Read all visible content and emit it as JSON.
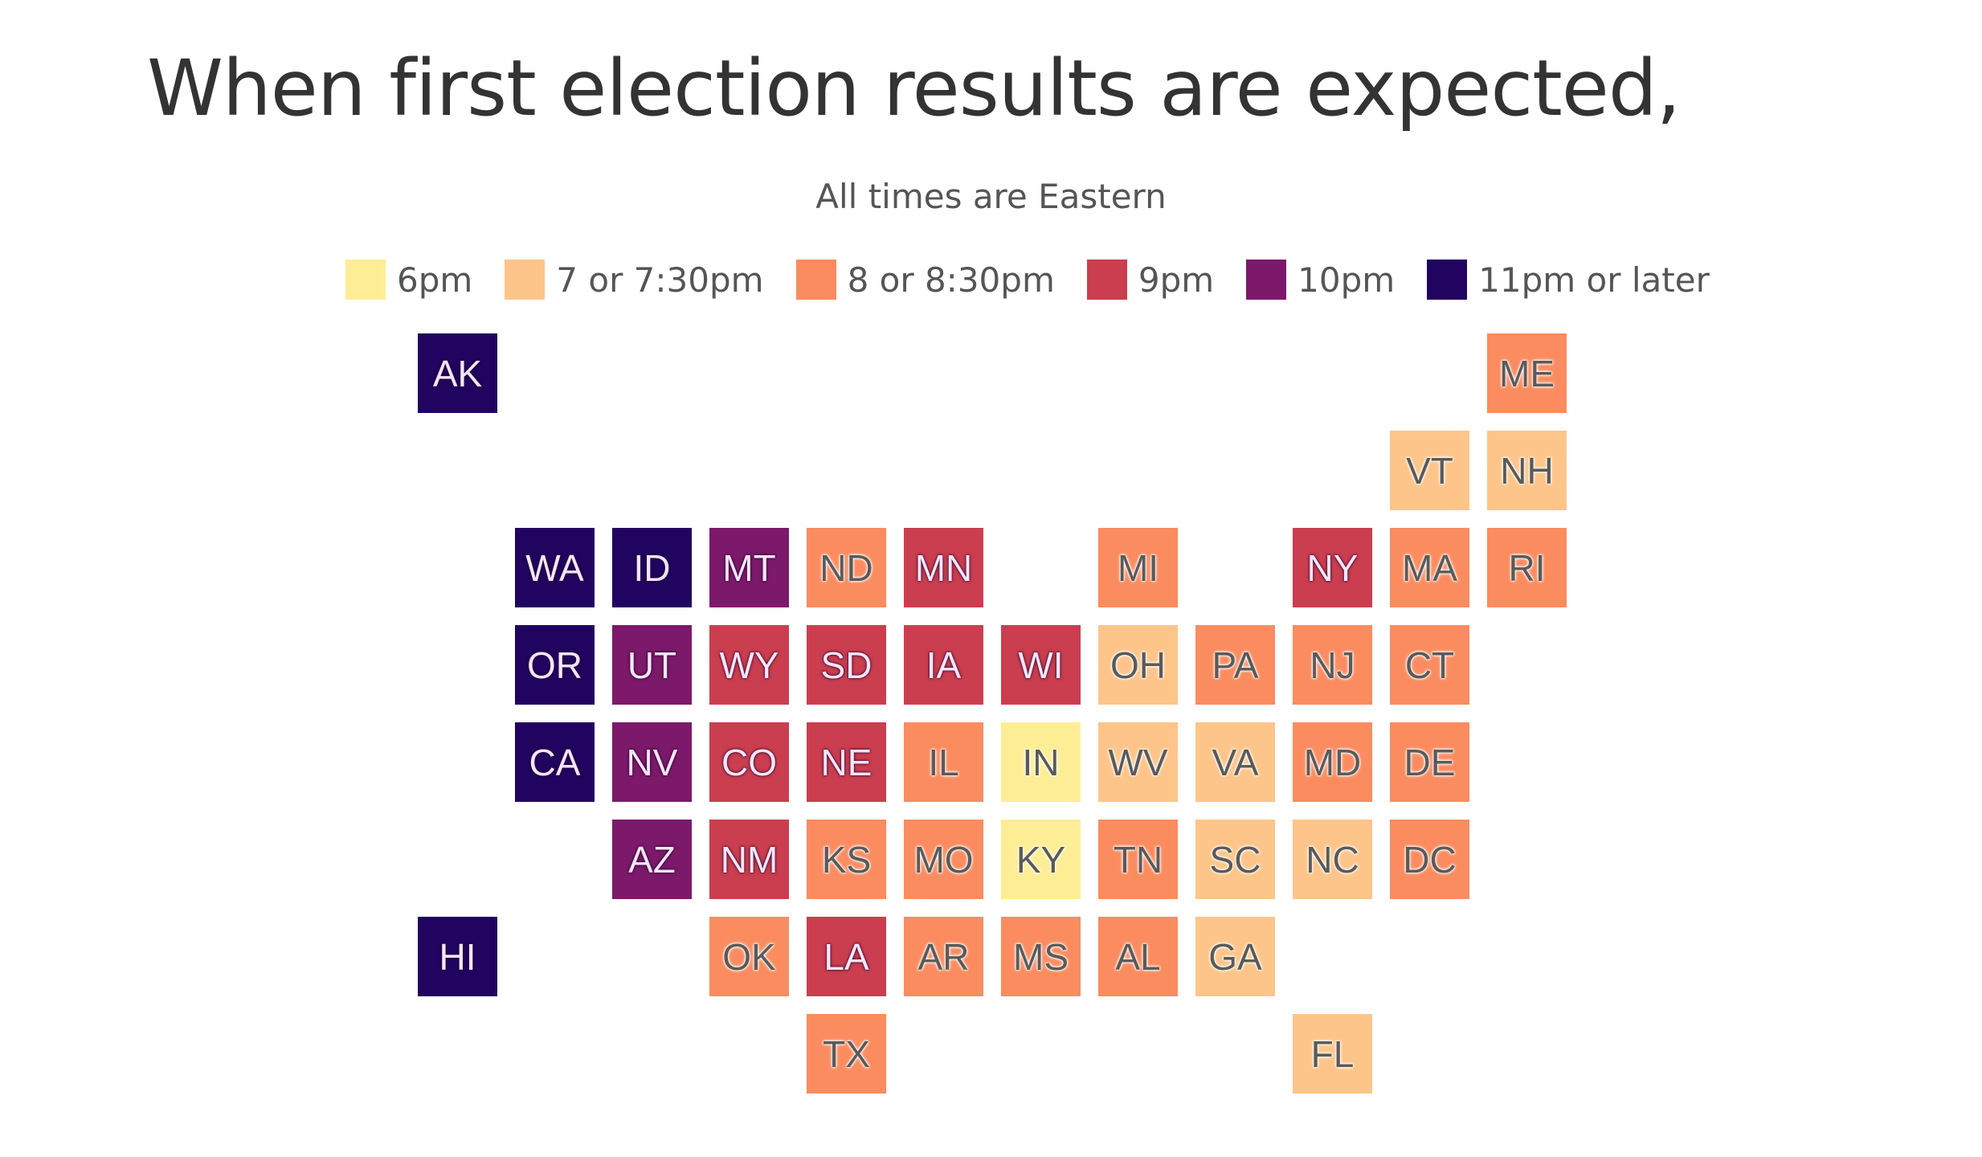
{
  "chart_data": {
    "type": "tile-map",
    "title": "When first election results are expected,",
    "subtitle": "All times are Eastern",
    "legend": [
      {
        "id": "6pm",
        "label": "6pm",
        "color": "#fdee96"
      },
      {
        "id": "7pm",
        "label": "7 or 7:30pm",
        "color": "#fdc58a"
      },
      {
        "id": "8pm",
        "label": "8 or 8:30pm",
        "color": "#fa8c60"
      },
      {
        "id": "9pm",
        "label": "9pm",
        "color": "#cb3e4f"
      },
      {
        "id": "10pm",
        "label": "10pm",
        "color": "#7d196b"
      },
      {
        "id": "11pm",
        "label": "11pm or later",
        "color": "#210460"
      }
    ],
    "states": [
      {
        "abbr": "AK",
        "col": 0,
        "row": 0,
        "time": "11pm"
      },
      {
        "abbr": "ME",
        "col": 11,
        "row": 0,
        "time": "8pm"
      },
      {
        "abbr": "VT",
        "col": 10,
        "row": 1,
        "time": "7pm"
      },
      {
        "abbr": "NH",
        "col": 11,
        "row": 1,
        "time": "7pm"
      },
      {
        "abbr": "WA",
        "col": 1,
        "row": 2,
        "time": "11pm"
      },
      {
        "abbr": "ID",
        "col": 2,
        "row": 2,
        "time": "11pm"
      },
      {
        "abbr": "MT",
        "col": 3,
        "row": 2,
        "time": "10pm"
      },
      {
        "abbr": "ND",
        "col": 4,
        "row": 2,
        "time": "8pm"
      },
      {
        "abbr": "MN",
        "col": 5,
        "row": 2,
        "time": "9pm"
      },
      {
        "abbr": "MI",
        "col": 7,
        "row": 2,
        "time": "8pm"
      },
      {
        "abbr": "NY",
        "col": 9,
        "row": 2,
        "time": "9pm"
      },
      {
        "abbr": "MA",
        "col": 10,
        "row": 2,
        "time": "8pm"
      },
      {
        "abbr": "RI",
        "col": 11,
        "row": 2,
        "time": "8pm"
      },
      {
        "abbr": "OR",
        "col": 1,
        "row": 3,
        "time": "11pm"
      },
      {
        "abbr": "UT",
        "col": 2,
        "row": 3,
        "time": "10pm"
      },
      {
        "abbr": "WY",
        "col": 3,
        "row": 3,
        "time": "9pm"
      },
      {
        "abbr": "SD",
        "col": 4,
        "row": 3,
        "time": "9pm"
      },
      {
        "abbr": "IA",
        "col": 5,
        "row": 3,
        "time": "9pm"
      },
      {
        "abbr": "WI",
        "col": 6,
        "row": 3,
        "time": "9pm"
      },
      {
        "abbr": "OH",
        "col": 7,
        "row": 3,
        "time": "7pm"
      },
      {
        "abbr": "PA",
        "col": 8,
        "row": 3,
        "time": "8pm"
      },
      {
        "abbr": "NJ",
        "col": 9,
        "row": 3,
        "time": "8pm"
      },
      {
        "abbr": "CT",
        "col": 10,
        "row": 3,
        "time": "8pm"
      },
      {
        "abbr": "CA",
        "col": 1,
        "row": 4,
        "time": "11pm"
      },
      {
        "abbr": "NV",
        "col": 2,
        "row": 4,
        "time": "10pm"
      },
      {
        "abbr": "CO",
        "col": 3,
        "row": 4,
        "time": "9pm"
      },
      {
        "abbr": "NE",
        "col": 4,
        "row": 4,
        "time": "9pm"
      },
      {
        "abbr": "IL",
        "col": 5,
        "row": 4,
        "time": "8pm"
      },
      {
        "abbr": "IN",
        "col": 6,
        "row": 4,
        "time": "6pm"
      },
      {
        "abbr": "WV",
        "col": 7,
        "row": 4,
        "time": "7pm"
      },
      {
        "abbr": "VA",
        "col": 8,
        "row": 4,
        "time": "7pm"
      },
      {
        "abbr": "MD",
        "col": 9,
        "row": 4,
        "time": "8pm"
      },
      {
        "abbr": "DE",
        "col": 10,
        "row": 4,
        "time": "8pm"
      },
      {
        "abbr": "AZ",
        "col": 2,
        "row": 5,
        "time": "10pm"
      },
      {
        "abbr": "NM",
        "col": 3,
        "row": 5,
        "time": "9pm"
      },
      {
        "abbr": "KS",
        "col": 4,
        "row": 5,
        "time": "8pm"
      },
      {
        "abbr": "MO",
        "col": 5,
        "row": 5,
        "time": "8pm"
      },
      {
        "abbr": "KY",
        "col": 6,
        "row": 5,
        "time": "6pm"
      },
      {
        "abbr": "TN",
        "col": 7,
        "row": 5,
        "time": "8pm"
      },
      {
        "abbr": "SC",
        "col": 8,
        "row": 5,
        "time": "7pm"
      },
      {
        "abbr": "NC",
        "col": 9,
        "row": 5,
        "time": "7pm"
      },
      {
        "abbr": "DC",
        "col": 10,
        "row": 5,
        "time": "8pm"
      },
      {
        "abbr": "HI",
        "col": 0,
        "row": 6,
        "time": "11pm"
      },
      {
        "abbr": "OK",
        "col": 3,
        "row": 6,
        "time": "8pm"
      },
      {
        "abbr": "LA",
        "col": 4,
        "row": 6,
        "time": "9pm"
      },
      {
        "abbr": "AR",
        "col": 5,
        "row": 6,
        "time": "8pm"
      },
      {
        "abbr": "MS",
        "col": 6,
        "row": 6,
        "time": "8pm"
      },
      {
        "abbr": "AL",
        "col": 7,
        "row": 6,
        "time": "8pm"
      },
      {
        "abbr": "GA",
        "col": 8,
        "row": 6,
        "time": "7pm"
      },
      {
        "abbr": "TX",
        "col": 4,
        "row": 7,
        "time": "8pm"
      },
      {
        "abbr": "FL",
        "col": 9,
        "row": 7,
        "time": "7pm"
      }
    ]
  }
}
